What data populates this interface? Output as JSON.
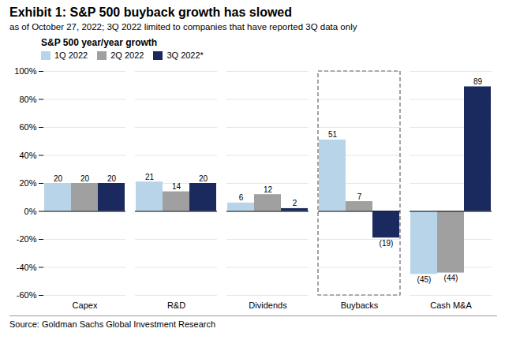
{
  "chart_data": {
    "type": "bar",
    "title": "Exhibit 1: S&P 500 buyback growth has slowed",
    "subtitle": "as of October 27, 2022; 3Q 2022 limited to companies that have reported 3Q data only",
    "source": "Source: Goldman Sachs Global Investment Research",
    "legend_title": "S&P 500 year/year growth",
    "highlight": "Buybacks",
    "categories": [
      "Capex",
      "R&D",
      "Dividends",
      "Buybacks",
      "Cash M&A"
    ],
    "series": [
      {
        "name": "1Q 2022",
        "color": "#b8d4e8",
        "values": [
          20,
          21,
          6,
          51,
          -45
        ],
        "value_labels": [
          "20",
          "21",
          "6",
          "51",
          "(45)"
        ]
      },
      {
        "name": "2Q 2022",
        "color": "#a0a0a0",
        "values": [
          20,
          14,
          12,
          7,
          -44
        ],
        "value_labels": [
          "20",
          "14",
          "12",
          "7",
          "(44)"
        ]
      },
      {
        "name": "3Q 2022*",
        "color": "#1a2a5e",
        "values": [
          20,
          20,
          2,
          -19,
          89
        ],
        "value_labels": [
          "20",
          "20",
          "2",
          "(19)",
          "89"
        ]
      }
    ],
    "ylim": [
      -60,
      100
    ],
    "yticks": [
      {
        "value": -60,
        "label": "-60%"
      },
      {
        "value": -40,
        "label": "-40%"
      },
      {
        "value": -20,
        "label": "-20%"
      },
      {
        "value": 0,
        "label": "0%"
      },
      {
        "value": 20,
        "label": "20%"
      },
      {
        "value": 40,
        "label": "40%"
      },
      {
        "value": 60,
        "label": "60%"
      },
      {
        "value": 80,
        "label": "80%"
      },
      {
        "value": 100,
        "label": "100%"
      }
    ],
    "grid": true,
    "legend": "upper left",
    "data_labels": true
  }
}
